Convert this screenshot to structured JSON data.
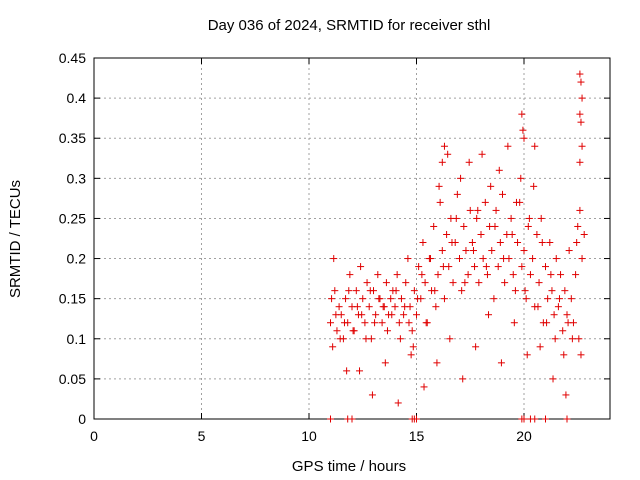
{
  "chart_data": {
    "type": "scatter",
    "title": "Day 036 of 2024, SRMTID for receiver sthl",
    "xlabel": "GPS time / hours",
    "ylabel": "SRMTID / TECUs",
    "xlim": [
      0,
      24
    ],
    "ylim": [
      0,
      0.45
    ],
    "xticks": [
      0,
      5,
      10,
      15,
      20
    ],
    "xtick_labels": [
      "0",
      "5",
      "10",
      "15",
      "20"
    ],
    "yticks": [
      0,
      0.05,
      0.1,
      0.15,
      0.2,
      0.25,
      0.3,
      0.35,
      0.4,
      0.45
    ],
    "ytick_labels": [
      "0",
      "0.05",
      "0.1",
      "0.15",
      "0.2",
      "0.25",
      "0.3",
      "0.35",
      "0.4",
      "0.45"
    ],
    "grid": true,
    "marker": "+",
    "marker_color": "#e00000",
    "series": [
      {
        "name": "SRMTID",
        "x": [
          11.0,
          11.1,
          11.2,
          11.3,
          11.4,
          11.5,
          11.6,
          11.7,
          11.8,
          11.9,
          12.0,
          12.1,
          12.2,
          12.3,
          12.4,
          12.5,
          12.6,
          12.7,
          12.8,
          12.9,
          13.0,
          13.1,
          13.2,
          13.3,
          13.4,
          13.5,
          13.6,
          13.7,
          13.8,
          13.9,
          14.0,
          14.1,
          14.2,
          14.3,
          14.4,
          14.5,
          14.6,
          14.7,
          14.8,
          14.9,
          15.0,
          15.1,
          15.2,
          15.3,
          15.4,
          15.5,
          15.6,
          15.7,
          15.8,
          15.9,
          16.0,
          16.1,
          16.2,
          16.3,
          16.4,
          16.5,
          16.6,
          16.7,
          16.8,
          16.9,
          17.0,
          17.1,
          17.2,
          17.3,
          17.4,
          17.5,
          17.6,
          17.7,
          17.8,
          17.9,
          18.0,
          18.1,
          18.2,
          18.3,
          18.4,
          18.5,
          18.6,
          18.7,
          18.8,
          18.9,
          19.0,
          19.1,
          19.2,
          19.3,
          19.4,
          19.5,
          19.6,
          19.7,
          19.8,
          19.9,
          20.0,
          20.1,
          20.2,
          20.3,
          20.4,
          20.5,
          20.6,
          20.7,
          20.8,
          20.9,
          21.0,
          21.1,
          21.2,
          21.3,
          21.4,
          21.5,
          21.6,
          21.7,
          21.8,
          21.9,
          22.0,
          22.1,
          22.2,
          22.3,
          22.4,
          22.5,
          22.6,
          22.7,
          22.8,
          11.05,
          11.25,
          11.45,
          11.65,
          11.85,
          12.05,
          12.25,
          12.45,
          12.65,
          12.85,
          13.05,
          13.25,
          13.45,
          13.65,
          13.85,
          14.05,
          14.25,
          14.45,
          14.65,
          14.85,
          15.05,
          15.25,
          15.45,
          15.65,
          15.85,
          16.05,
          16.25,
          16.45,
          16.65,
          16.85,
          17.05,
          17.25,
          17.45,
          17.65,
          17.85,
          18.05,
          18.25,
          18.45,
          18.65,
          18.85,
          19.05,
          19.25,
          19.45,
          19.65,
          19.85,
          20.05,
          20.25,
          20.45,
          20.65,
          20.85,
          21.05,
          21.25,
          21.45,
          21.65,
          21.85,
          22.05,
          22.25,
          22.45,
          22.65,
          11.15,
          11.75,
          12.35,
          12.95,
          13.55,
          14.15,
          14.75,
          15.35,
          15.95,
          16.55,
          17.15,
          17.75,
          18.35,
          18.95,
          19.55,
          20.15,
          20.75,
          21.35,
          21.95,
          22.55,
          11.0,
          11.8,
          12.0,
          14.8,
          14.9,
          15.0,
          19.9,
          20.0,
          20.3,
          20.5,
          21.0,
          22.0
        ],
        "y": [
          0.12,
          0.09,
          0.16,
          0.11,
          0.14,
          0.13,
          0.1,
          0.15,
          0.12,
          0.18,
          0.14,
          0.11,
          0.16,
          0.13,
          0.19,
          0.15,
          0.12,
          0.17,
          0.14,
          0.1,
          0.16,
          0.13,
          0.18,
          0.15,
          0.12,
          0.14,
          0.17,
          0.13,
          0.15,
          0.16,
          0.14,
          0.18,
          0.12,
          0.15,
          0.13,
          0.17,
          0.2,
          0.14,
          0.11,
          0.16,
          0.13,
          0.19,
          0.15,
          0.22,
          0.17,
          0.12,
          0.2,
          0.16,
          0.24,
          0.14,
          0.18,
          0.27,
          0.21,
          0.15,
          0.23,
          0.19,
          0.25,
          0.17,
          0.22,
          0.28,
          0.2,
          0.16,
          0.24,
          0.21,
          0.18,
          0.26,
          0.22,
          0.19,
          0.25,
          0.17,
          0.23,
          0.2,
          0.27,
          0.18,
          0.24,
          0.21,
          0.15,
          0.26,
          0.19,
          0.22,
          0.28,
          0.17,
          0.23,
          0.2,
          0.25,
          0.18,
          0.16,
          0.22,
          0.27,
          0.19,
          0.21,
          0.15,
          0.24,
          0.18,
          0.2,
          0.14,
          0.23,
          0.17,
          0.25,
          0.12,
          0.19,
          0.15,
          0.22,
          0.16,
          0.13,
          0.2,
          0.14,
          0.18,
          0.11,
          0.16,
          0.13,
          0.21,
          0.15,
          0.12,
          0.18,
          0.24,
          0.26,
          0.2,
          0.23,
          0.15,
          0.13,
          0.1,
          0.12,
          0.16,
          0.11,
          0.14,
          0.13,
          0.1,
          0.16,
          0.12,
          0.15,
          0.14,
          0.11,
          0.13,
          0.16,
          0.1,
          0.14,
          0.12,
          0.09,
          0.15,
          0.18,
          0.12,
          0.2,
          0.16,
          0.29,
          0.19,
          0.33,
          0.22,
          0.25,
          0.3,
          0.17,
          0.32,
          0.21,
          0.26,
          0.33,
          0.19,
          0.29,
          0.24,
          0.31,
          0.2,
          0.34,
          0.23,
          0.27,
          0.3,
          0.16,
          0.25,
          0.29,
          0.14,
          0.22,
          0.12,
          0.18,
          0.1,
          0.15,
          0.08,
          0.12,
          0.1,
          0.22,
          0.08,
          0.2,
          0.06,
          0.06,
          0.03,
          0.07,
          0.02,
          0.08,
          0.04,
          0.07,
          0.1,
          0.05,
          0.09,
          0.13,
          0.07,
          0.12,
          0.08,
          0.09,
          0.05,
          0.03,
          0.1,
          0.0,
          0.0,
          0.0,
          0.0,
          0.0,
          0.0,
          0.0,
          0.0,
          0.0,
          0.0,
          0.0,
          0.0
        ],
        "notable": [
          {
            "x": 22.6,
            "y": 0.43
          },
          {
            "x": 22.65,
            "y": 0.42
          },
          {
            "x": 22.7,
            "y": 0.4
          },
          {
            "x": 22.6,
            "y": 0.38
          },
          {
            "x": 22.65,
            "y": 0.37
          },
          {
            "x": 19.9,
            "y": 0.38
          },
          {
            "x": 19.95,
            "y": 0.36
          },
          {
            "x": 20.0,
            "y": 0.35
          },
          {
            "x": 20.5,
            "y": 0.34
          },
          {
            "x": 16.3,
            "y": 0.34
          },
          {
            "x": 16.2,
            "y": 0.32
          },
          {
            "x": 22.7,
            "y": 0.34
          },
          {
            "x": 22.6,
            "y": 0.32
          }
        ]
      }
    ]
  }
}
